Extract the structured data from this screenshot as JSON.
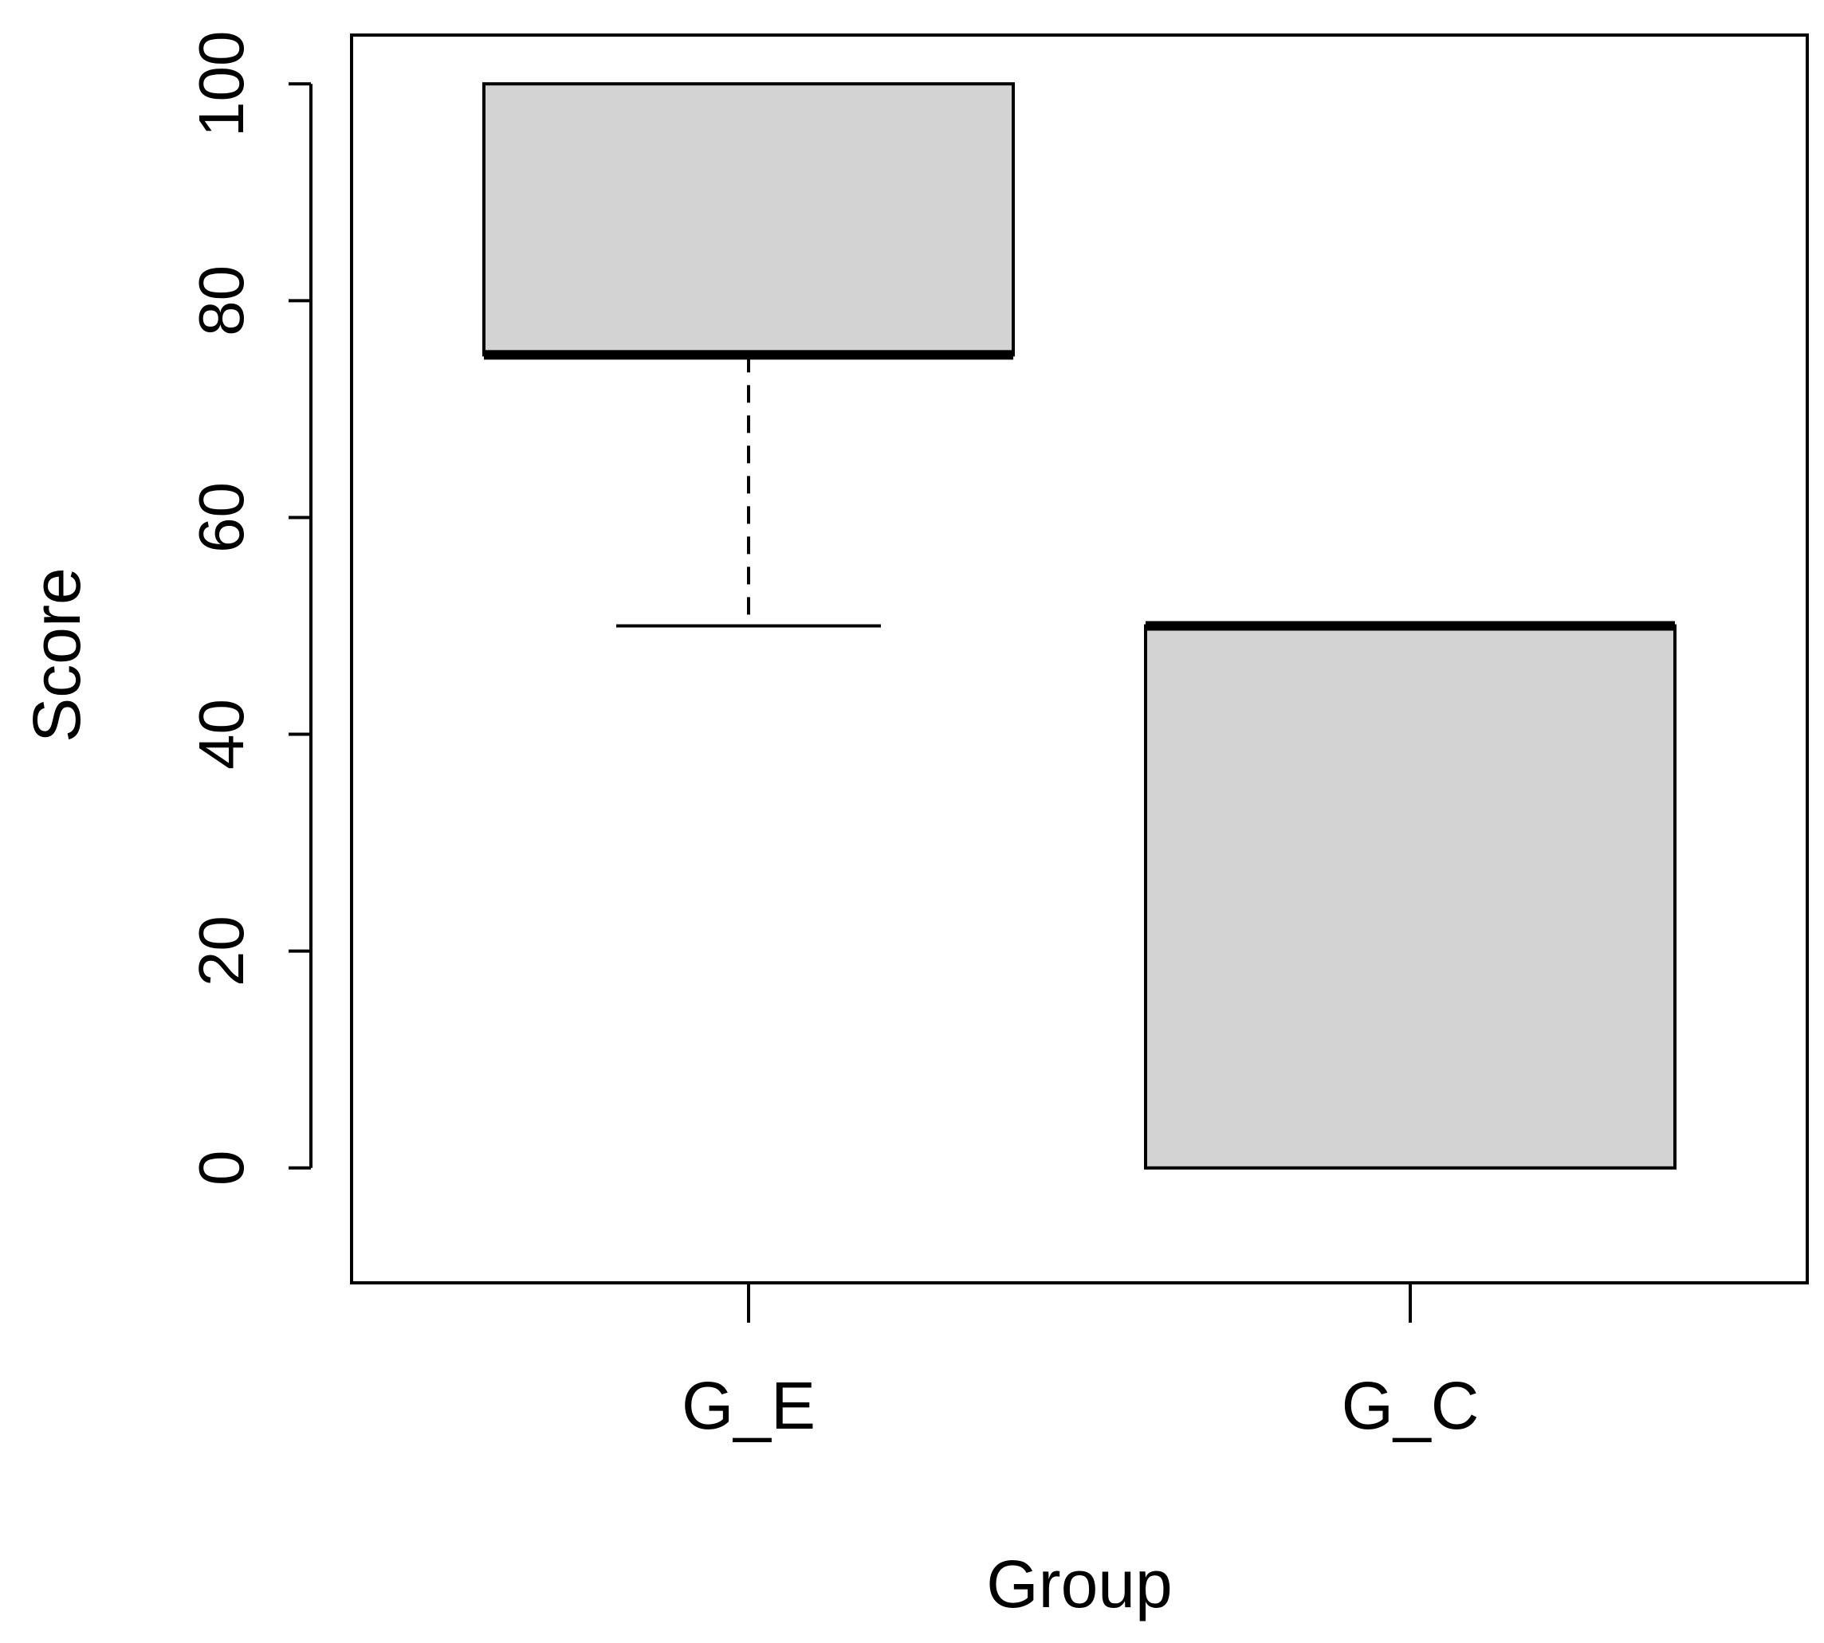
{
  "chart_data": {
    "type": "boxplot",
    "title": "",
    "xlabel": "Group",
    "ylabel": "Score",
    "ylim": [
      -10.6,
      104.5
    ],
    "yticks": [
      0,
      20,
      40,
      60,
      80,
      100
    ],
    "categories": [
      "G_E",
      "G_C"
    ],
    "boxes": [
      {
        "category": "G_E",
        "min": 50,
        "q1": 75,
        "median": 75,
        "q3": 100,
        "max": 100
      },
      {
        "category": "G_C",
        "min": 0,
        "q1": 0,
        "median": 50,
        "q3": 50,
        "max": 50
      }
    ],
    "box_fill": "#d3d3d3",
    "line_color": "#000000",
    "grid": false,
    "legend": "none"
  }
}
